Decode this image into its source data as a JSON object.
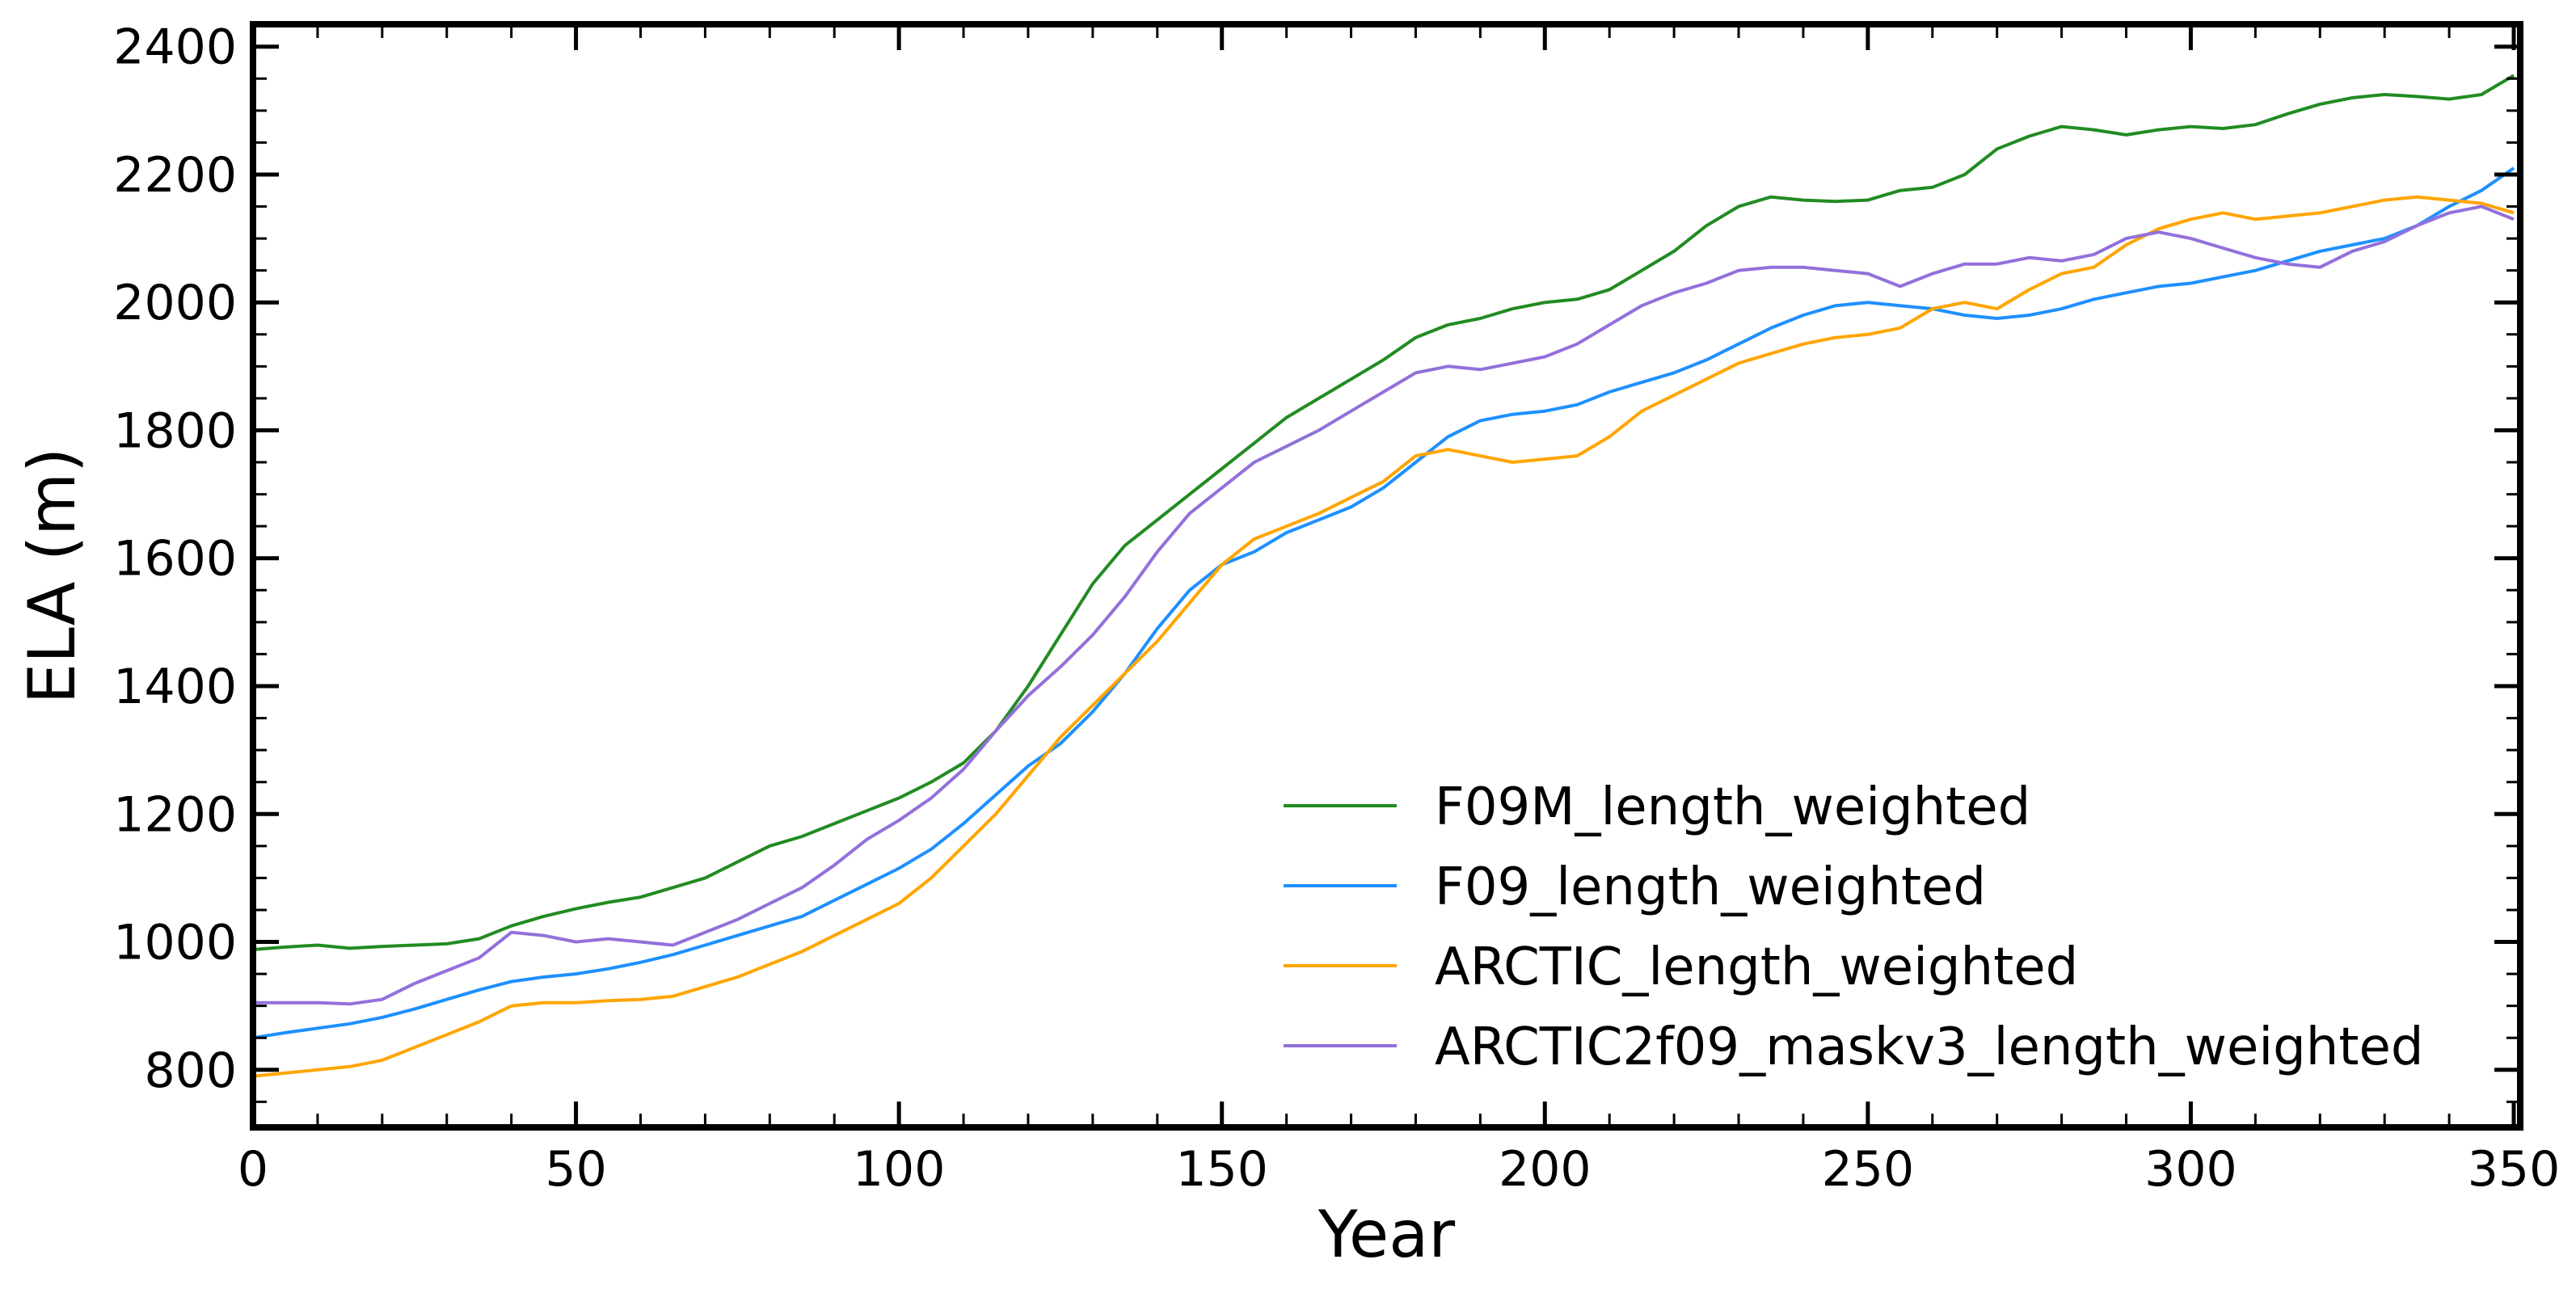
{
  "chart_data": {
    "type": "line",
    "title": "",
    "xlabel": "Year",
    "ylabel": "ELA (m)",
    "xlim": [
      0,
      351
    ],
    "ylim": [
      710,
      2435
    ],
    "xticks": [
      0,
      50,
      100,
      150,
      200,
      250,
      300,
      350
    ],
    "yticks": [
      800,
      1000,
      1200,
      1400,
      1600,
      1800,
      2000,
      2200,
      2400
    ],
    "grid": false,
    "legend_position": "lower-right",
    "series": [
      {
        "name": "F09M_length_weighted",
        "color": "#228b22",
        "x": [
          0,
          5,
          10,
          15,
          20,
          25,
          30,
          35,
          40,
          45,
          50,
          55,
          60,
          65,
          70,
          75,
          80,
          85,
          90,
          95,
          100,
          105,
          110,
          115,
          120,
          125,
          130,
          135,
          140,
          145,
          150,
          155,
          160,
          165,
          170,
          175,
          180,
          185,
          190,
          195,
          200,
          205,
          210,
          215,
          220,
          225,
          230,
          235,
          240,
          245,
          250,
          255,
          260,
          265,
          270,
          275,
          280,
          285,
          290,
          295,
          300,
          305,
          310,
          315,
          320,
          325,
          330,
          335,
          340,
          345,
          350
        ],
        "y": [
          988,
          992,
          995,
          990,
          993,
          995,
          997,
          1005,
          1025,
          1040,
          1052,
          1062,
          1070,
          1085,
          1100,
          1125,
          1150,
          1165,
          1185,
          1205,
          1225,
          1250,
          1280,
          1330,
          1400,
          1480,
          1560,
          1620,
          1660,
          1700,
          1740,
          1780,
          1820,
          1850,
          1880,
          1910,
          1945,
          1965,
          1975,
          1990,
          2000,
          2005,
          2020,
          2050,
          2080,
          2120,
          2150,
          2165,
          2160,
          2158,
          2160,
          2175,
          2180,
          2200,
          2240,
          2260,
          2275,
          2270,
          2262,
          2270,
          2275,
          2272,
          2278,
          2295,
          2310,
          2320,
          2325,
          2322,
          2318,
          2325,
          2355
        ]
      },
      {
        "name": "F09_length_weighted",
        "color": "#1e90ff",
        "x": [
          0,
          5,
          10,
          15,
          20,
          25,
          30,
          35,
          40,
          45,
          50,
          55,
          60,
          65,
          70,
          75,
          80,
          85,
          90,
          95,
          100,
          105,
          110,
          115,
          120,
          125,
          130,
          135,
          140,
          145,
          150,
          155,
          160,
          165,
          170,
          175,
          180,
          185,
          190,
          195,
          200,
          205,
          210,
          215,
          220,
          225,
          230,
          235,
          240,
          245,
          250,
          255,
          260,
          265,
          270,
          275,
          280,
          285,
          290,
          295,
          300,
          305,
          310,
          315,
          320,
          325,
          330,
          335,
          340,
          345,
          350
        ],
        "y": [
          850,
          858,
          865,
          872,
          882,
          895,
          910,
          925,
          938,
          945,
          950,
          958,
          968,
          980,
          995,
          1010,
          1025,
          1040,
          1065,
          1090,
          1115,
          1145,
          1185,
          1230,
          1275,
          1310,
          1360,
          1420,
          1490,
          1550,
          1590,
          1610,
          1640,
          1660,
          1680,
          1710,
          1750,
          1790,
          1815,
          1825,
          1830,
          1840,
          1860,
          1875,
          1890,
          1910,
          1935,
          1960,
          1980,
          1995,
          2000,
          1995,
          1990,
          1980,
          1975,
          1980,
          1990,
          2005,
          2015,
          2025,
          2030,
          2040,
          2050,
          2065,
          2080,
          2090,
          2100,
          2120,
          2150,
          2175,
          2210
        ]
      },
      {
        "name": "ARCTIC_length_weighted",
        "color": "#ffa500",
        "x": [
          0,
          5,
          10,
          15,
          20,
          25,
          30,
          35,
          40,
          45,
          50,
          55,
          60,
          65,
          70,
          75,
          80,
          85,
          90,
          95,
          100,
          105,
          110,
          115,
          120,
          125,
          130,
          135,
          140,
          145,
          150,
          155,
          160,
          165,
          170,
          175,
          180,
          185,
          190,
          195,
          200,
          205,
          210,
          215,
          220,
          225,
          230,
          235,
          240,
          245,
          250,
          255,
          260,
          265,
          270,
          275,
          280,
          285,
          290,
          295,
          300,
          305,
          310,
          315,
          320,
          325,
          330,
          335,
          340,
          345,
          350
        ],
        "y": [
          790,
          795,
          800,
          805,
          815,
          835,
          855,
          875,
          900,
          905,
          905,
          908,
          910,
          915,
          930,
          945,
          965,
          985,
          1010,
          1035,
          1060,
          1100,
          1150,
          1200,
          1260,
          1320,
          1370,
          1420,
          1470,
          1530,
          1590,
          1630,
          1650,
          1670,
          1695,
          1720,
          1760,
          1770,
          1760,
          1750,
          1755,
          1760,
          1790,
          1830,
          1855,
          1880,
          1905,
          1920,
          1935,
          1945,
          1950,
          1960,
          1990,
          2000,
          1990,
          2020,
          2045,
          2055,
          2090,
          2115,
          2130,
          2140,
          2130,
          2135,
          2140,
          2150,
          2160,
          2165,
          2160,
          2155,
          2140
        ]
      },
      {
        "name": "ARCTIC2f09_maskv3_length_weighted",
        "color": "#9370db",
        "x": [
          0,
          5,
          10,
          15,
          20,
          25,
          30,
          35,
          40,
          45,
          50,
          55,
          60,
          65,
          70,
          75,
          80,
          85,
          90,
          95,
          100,
          105,
          110,
          115,
          120,
          125,
          130,
          135,
          140,
          145,
          150,
          155,
          160,
          165,
          170,
          175,
          180,
          185,
          190,
          195,
          200,
          205,
          210,
          215,
          220,
          225,
          230,
          235,
          240,
          245,
          250,
          255,
          260,
          265,
          270,
          275,
          280,
          285,
          290,
          295,
          300,
          305,
          310,
          315,
          320,
          325,
          330,
          335,
          340,
          345,
          350
        ],
        "y": [
          905,
          905,
          905,
          903,
          910,
          935,
          955,
          975,
          1015,
          1010,
          1000,
          1005,
          1000,
          995,
          1015,
          1035,
          1060,
          1085,
          1120,
          1160,
          1190,
          1225,
          1270,
          1330,
          1385,
          1430,
          1480,
          1540,
          1610,
          1670,
          1710,
          1750,
          1775,
          1800,
          1830,
          1860,
          1890,
          1900,
          1895,
          1905,
          1915,
          1935,
          1965,
          1995,
          2015,
          2030,
          2050,
          2055,
          2055,
          2050,
          2045,
          2025,
          2045,
          2060,
          2060,
          2070,
          2065,
          2075,
          2100,
          2110,
          2100,
          2085,
          2070,
          2060,
          2055,
          2080,
          2095,
          2120,
          2140,
          2150,
          2130
        ]
      }
    ]
  }
}
